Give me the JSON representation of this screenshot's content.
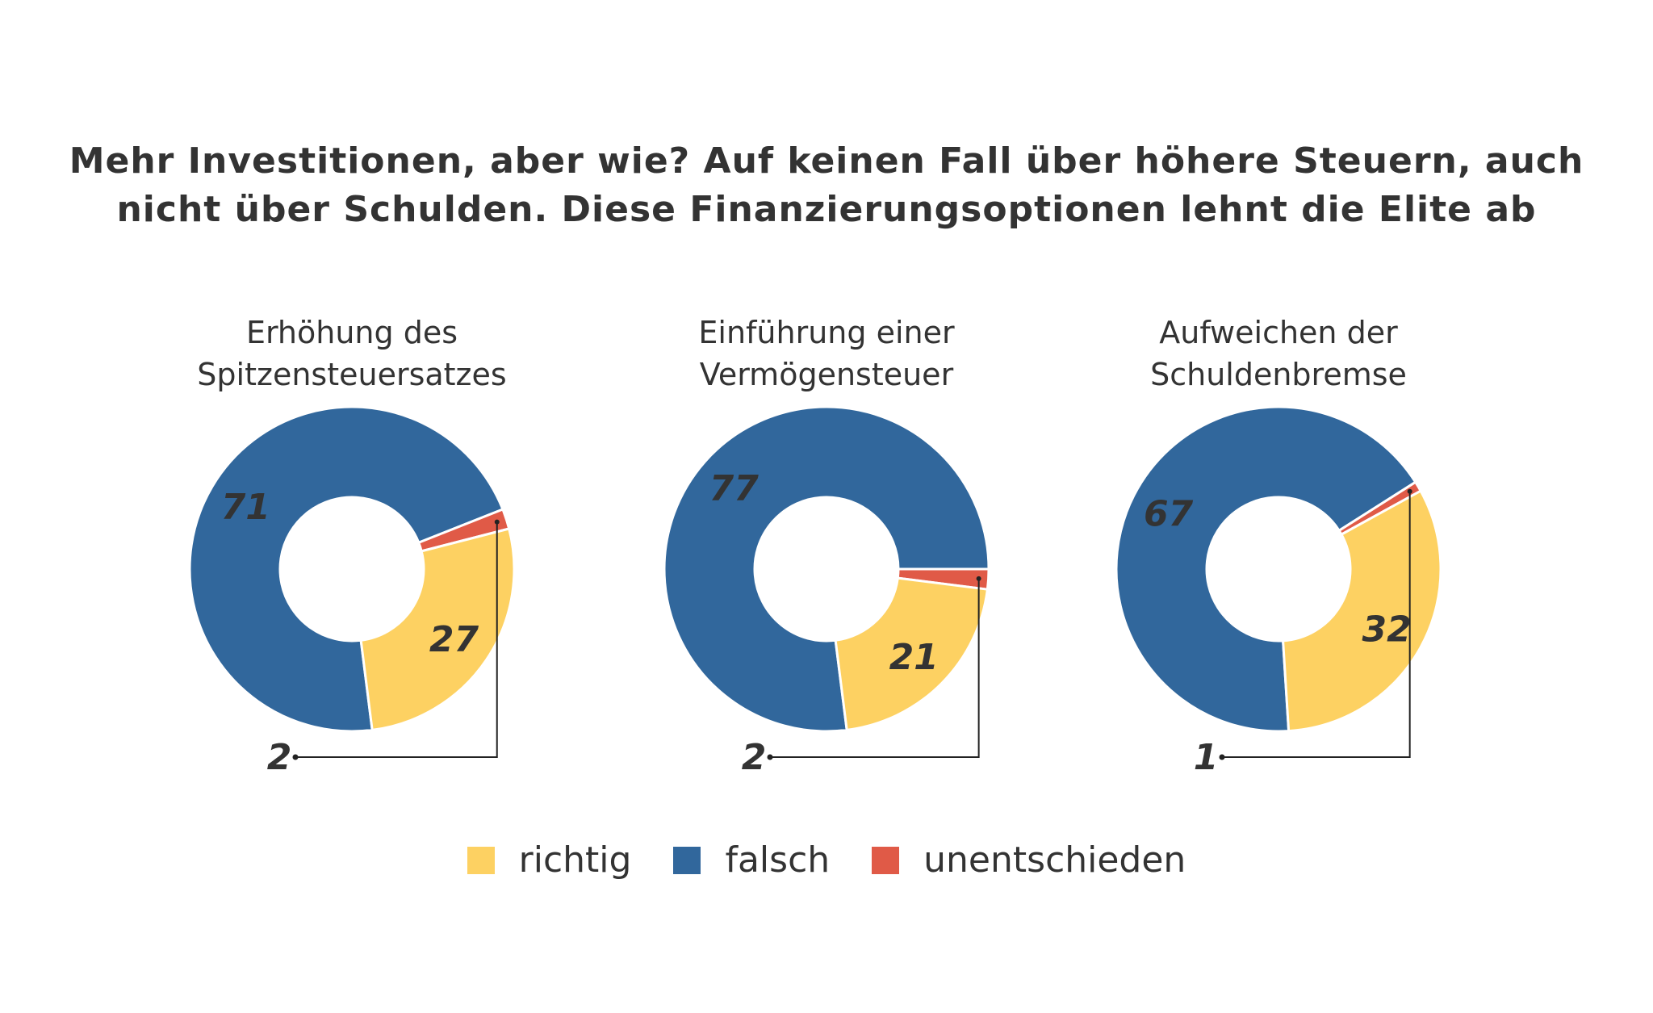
{
  "title": {
    "line1": "Mehr Investitionen, aber wie? Auf keinen Fall über höhere Steuern, auch",
    "line2": "nicht über Schulden. Diese Finanzierungsoptionen lehnt die Elite ab"
  },
  "colors": {
    "richtig": "#fdd162",
    "falsch": "#31679c",
    "unentschieden": "#e05a47",
    "text": "#333333"
  },
  "legend": [
    {
      "key": "richtig",
      "label": "richtig"
    },
    {
      "key": "falsch",
      "label": "falsch"
    },
    {
      "key": "unentschieden",
      "label": "unentschieden"
    }
  ],
  "chart_data": [
    {
      "type": "pie",
      "donut": true,
      "title_lines": [
        "Erhöhung des",
        "Spitzensteuersatzes"
      ],
      "categories": [
        "falsch",
        "unentschieden",
        "richtig"
      ],
      "values": [
        71,
        2,
        27
      ],
      "value_labels": [
        "71",
        "2",
        "27"
      ]
    },
    {
      "type": "pie",
      "donut": true,
      "title_lines": [
        "Einführung einer",
        "Vermögensteuer"
      ],
      "categories": [
        "falsch",
        "unentschieden",
        "richtig"
      ],
      "values": [
        77,
        2,
        21
      ],
      "value_labels": [
        "77",
        "2",
        "21"
      ]
    },
    {
      "type": "pie",
      "donut": true,
      "title_lines": [
        "Aufweichen der",
        "Schuldenbremse"
      ],
      "categories": [
        "falsch",
        "unentschieden",
        "richtig"
      ],
      "values": [
        67,
        1,
        32
      ],
      "value_labels": [
        "67",
        "1",
        "32"
      ]
    }
  ]
}
